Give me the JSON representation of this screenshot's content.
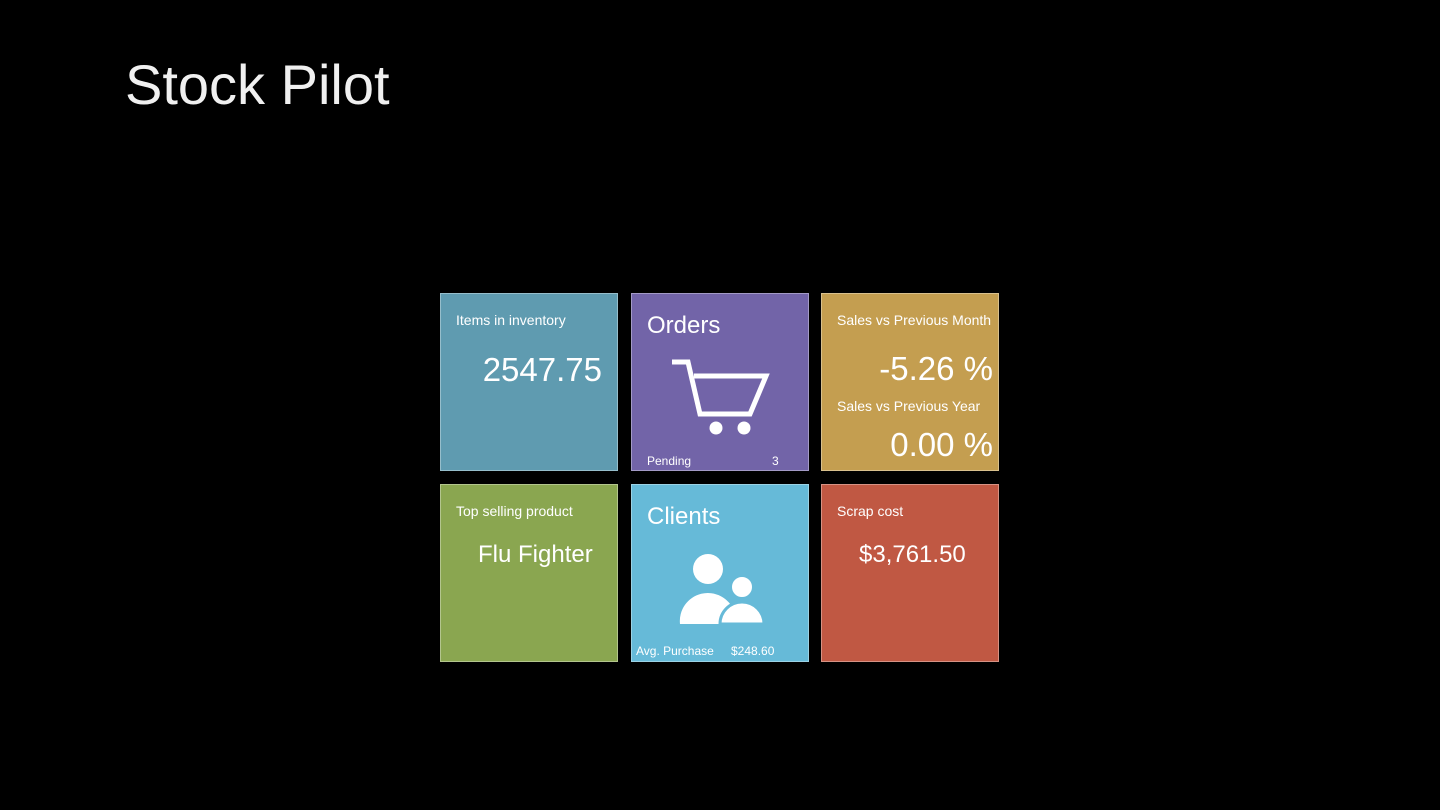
{
  "app_title": "Stock Pilot",
  "tiles": {
    "inventory": {
      "label": "Items in inventory",
      "value": "2547.75",
      "color": "#5f9bb0"
    },
    "orders": {
      "title": "Orders",
      "icon": "shopping-cart-icon",
      "pending_label": "Pending",
      "pending_value": "3",
      "color": "#7264a8"
    },
    "sales": {
      "month_label": "Sales vs Previous Month",
      "month_value": "-5.26 %",
      "year_label": "Sales vs Previous Year",
      "year_value": "0.00 %",
      "color": "#c49e50"
    },
    "top_product": {
      "label": "Top selling product",
      "value": "Flu Fighter",
      "color": "#8aa650"
    },
    "clients": {
      "title": "Clients",
      "icon": "people-icon",
      "avg_label": "Avg. Purchase",
      "avg_value": "$248.60",
      "color": "#66bad8"
    },
    "scrap": {
      "label": "Scrap cost",
      "value": "$3,761.50",
      "color": "#c05843"
    }
  }
}
